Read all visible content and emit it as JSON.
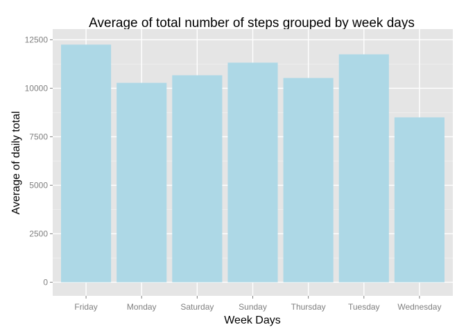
{
  "chart_data": {
    "type": "bar",
    "title": "Average of total number of steps grouped by week days",
    "xlabel": "Week Days",
    "ylabel": "Average of daily total",
    "categories": [
      "Friday",
      "Monday",
      "Saturday",
      "Sunday",
      "Thursday",
      "Tuesday",
      "Wednesday"
    ],
    "values": [
      12250,
      10280,
      10670,
      11320,
      10530,
      11750,
      8500
    ],
    "ylim": [
      -700,
      13050
    ],
    "yticks": [
      0,
      2500,
      5000,
      7500,
      10000,
      12500
    ],
    "ytick_labels": [
      "0",
      "2500",
      "5000",
      "7500",
      "10000",
      "12500"
    ],
    "grid": true,
    "colors": {
      "panel_bg": "#e5e5e5",
      "grid_major": "#ffffff",
      "grid_minor": "#f2f2f2",
      "bar_fill": "#add8e6",
      "tick_label": "#7f7f7f",
      "text": "#000000"
    }
  }
}
